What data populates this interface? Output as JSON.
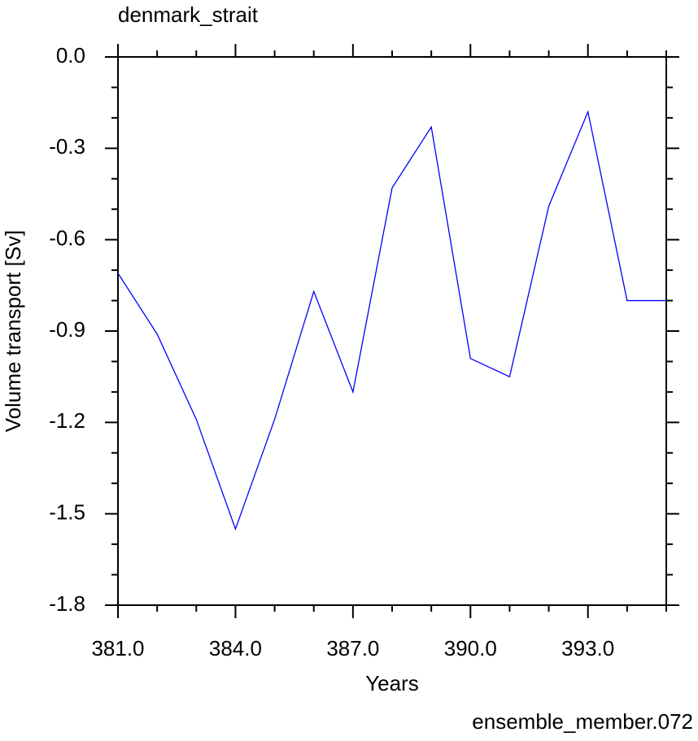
{
  "chart_data": {
    "type": "line",
    "title": "denmark_strait",
    "ylabel": "Volume transport [Sv]",
    "xlabel": "Years",
    "annotation": "ensemble_member.072",
    "annotation_color": "#0000ff",
    "x": [
      381,
      382,
      383,
      384,
      385,
      386,
      387,
      388,
      389,
      390,
      391,
      392,
      393,
      394,
      395
    ],
    "series": [
      {
        "color": "#0000ff",
        "values": [
          -0.71,
          -0.91,
          -1.19,
          -1.55,
          -1.19,
          -0.77,
          -1.1,
          -0.43,
          -0.23,
          -0.99,
          -1.05,
          -0.49,
          -0.18,
          -0.8,
          -0.8
        ]
      }
    ],
    "xlim": [
      381,
      395
    ],
    "ylim": [
      -1.8,
      0
    ],
    "xticks": [
      {
        "value": 381,
        "label": "381.0"
      },
      {
        "value": 384,
        "label": "384.0"
      },
      {
        "value": 387,
        "label": "387.0"
      },
      {
        "value": 390,
        "label": "390.0"
      },
      {
        "value": 393,
        "label": "393.0"
      }
    ],
    "yticks": [
      {
        "value": 0,
        "label": "0.0"
      },
      -0.3,
      -0.6,
      -0.9,
      -1.2,
      -1.5,
      -1.8
    ],
    "xminorticks": [
      382,
      383,
      385,
      386,
      388,
      389,
      391,
      392,
      394,
      395
    ],
    "yminorticks": [
      -0.1,
      -0.2,
      -0.4,
      -0.5,
      -0.7,
      -0.8,
      -1.0,
      -1.1,
      -1.3,
      -1.4,
      -1.6,
      -1.7
    ]
  }
}
